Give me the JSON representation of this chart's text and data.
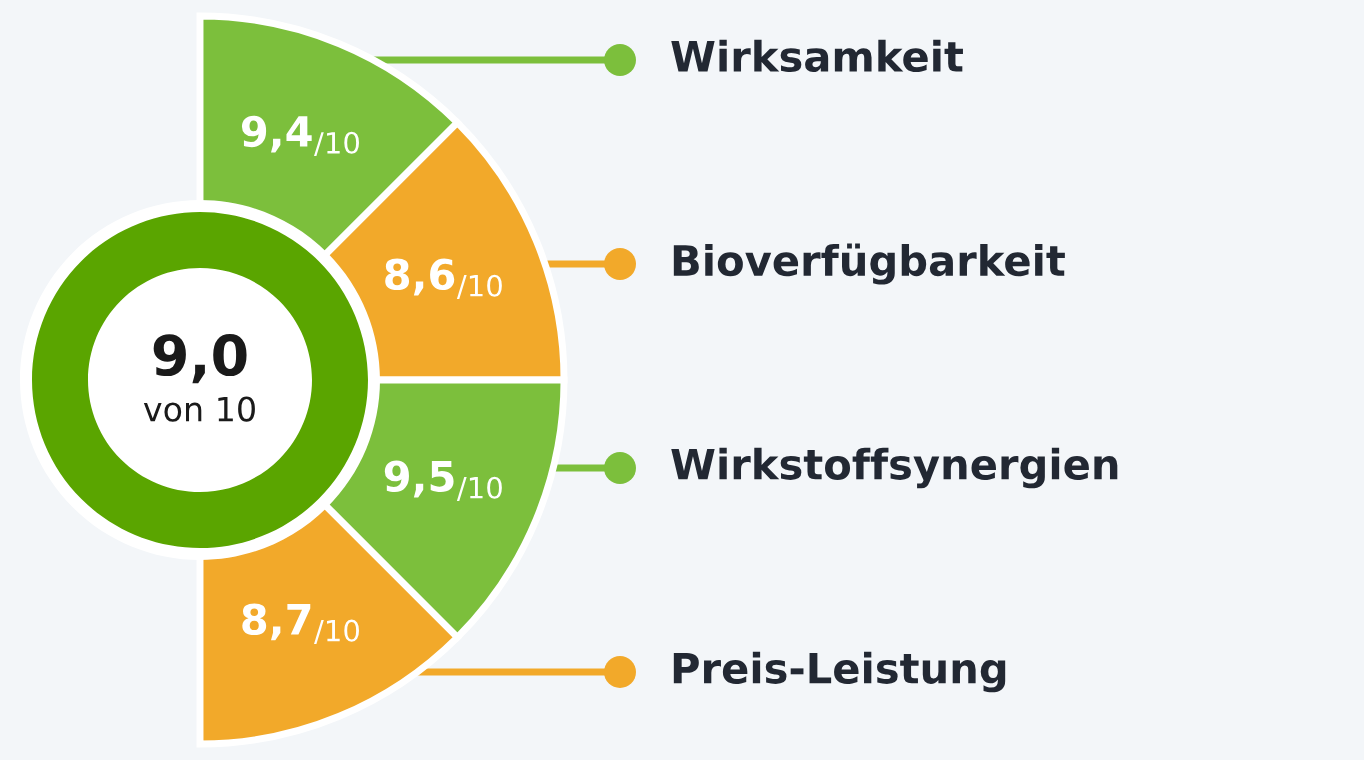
{
  "chart_data": {
    "type": "other",
    "categories": [
      "Wirksamkeit",
      "Bioverfügbarkeit",
      "Wirkstoffsynergien",
      "Preis-Leistung"
    ],
    "values": [
      9.4,
      8.6,
      9.5,
      8.7
    ],
    "value_labels": [
      "9,4$_{/10}$",
      "8,6$_{/10}$",
      "9,5$_{/10}$",
      "8,7$_{/10}$"
    ],
    "colors": [
      "#7cbf3c",
      "#f2a92a",
      "#7cbf3c",
      "#f2a92a"
    ],
    "annotations": [
      "9,0",
      "von 10"
    ]
  }
}
